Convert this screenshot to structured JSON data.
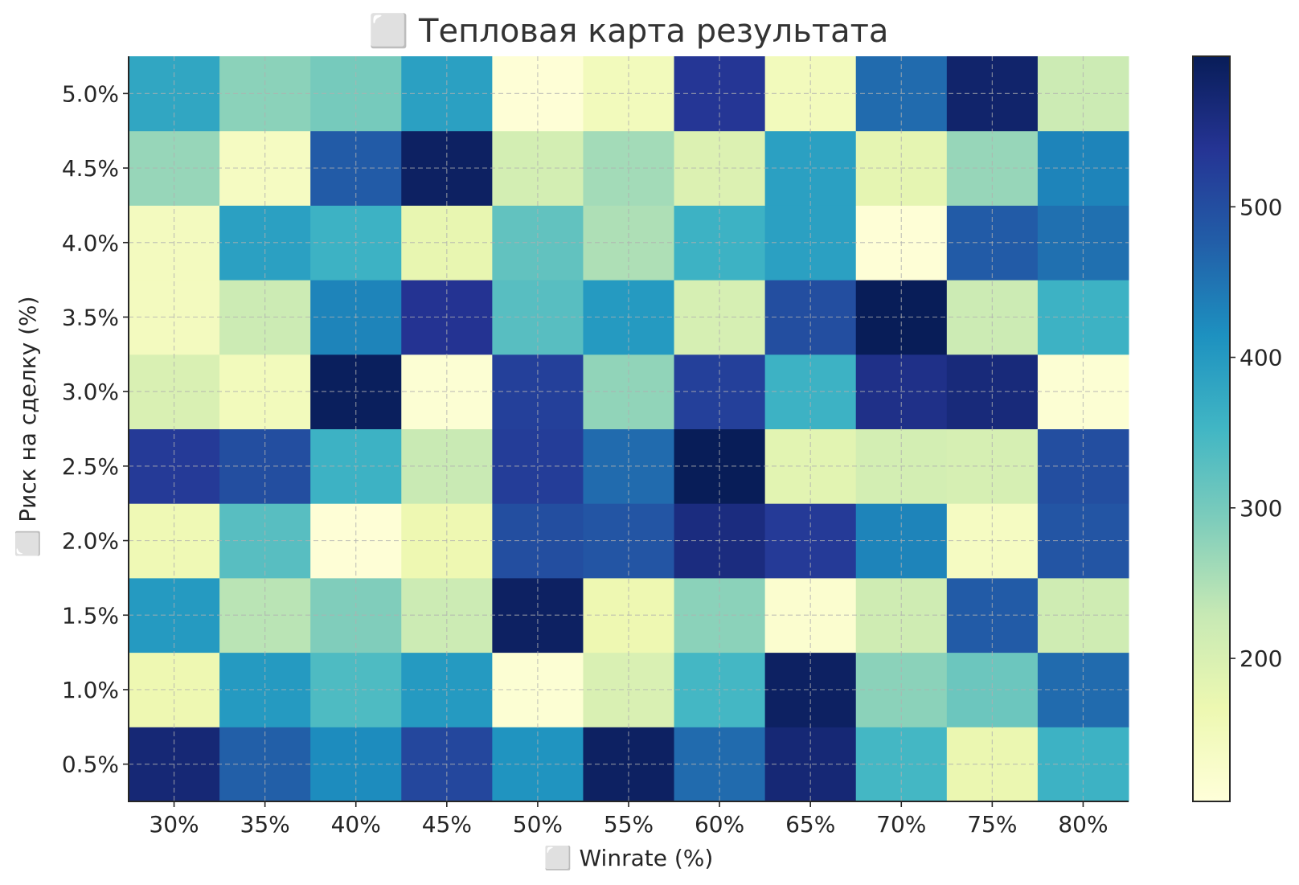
{
  "chart_data": {
    "type": "heatmap",
    "title": "⬜ Тепловая карта результата",
    "xlabel": "⬜ Winrate (%)",
    "ylabel": "⬜ Риск на сделку (%)",
    "x_categories": [
      "30%",
      "35%",
      "40%",
      "45%",
      "50%",
      "55%",
      "60%",
      "65%",
      "70%",
      "75%",
      "80%"
    ],
    "y_categories": [
      "0.5%",
      "1.0%",
      "1.5%",
      "2.0%",
      "2.5%",
      "3.0%",
      "3.5%",
      "4.0%",
      "4.5%",
      "5.0%"
    ],
    "values": [
      [
        570,
        475,
        420,
        510,
        410,
        590,
        460,
        570,
        350,
        170,
        360
      ],
      [
        165,
        400,
        340,
        400,
        115,
        200,
        350,
        590,
        280,
        310,
        460
      ],
      [
        400,
        240,
        290,
        220,
        590,
        165,
        280,
        120,
        215,
        480,
        215
      ],
      [
        160,
        330,
        110,
        165,
        500,
        490,
        560,
        530,
        430,
        140,
        490
      ],
      [
        530,
        500,
        360,
        225,
        525,
        460,
        600,
        185,
        210,
        205,
        500
      ],
      [
        200,
        150,
        595,
        115,
        520,
        275,
        520,
        360,
        550,
        565,
        115
      ],
      [
        145,
        220,
        430,
        540,
        330,
        400,
        205,
        500,
        600,
        220,
        360
      ],
      [
        145,
        390,
        360,
        175,
        320,
        250,
        360,
        390,
        110,
        480,
        455
      ],
      [
        270,
        140,
        480,
        590,
        210,
        260,
        195,
        390,
        180,
        270,
        430
      ],
      [
        380,
        280,
        300,
        390,
        110,
        150,
        535,
        150,
        460,
        580,
        220
      ]
    ],
    "colorbar": {
      "min": 105,
      "max": 600,
      "ticks": [
        200,
        300,
        400,
        500
      ],
      "colormap": "YlGnBu",
      "stops": [
        "#ffffd9",
        "#edf8b1",
        "#c7e9b4",
        "#7fcdbb",
        "#41b6c4",
        "#1d91c0",
        "#225ea8",
        "#253494",
        "#081d58"
      ]
    },
    "grid": true,
    "legend": "colorbar-right"
  }
}
